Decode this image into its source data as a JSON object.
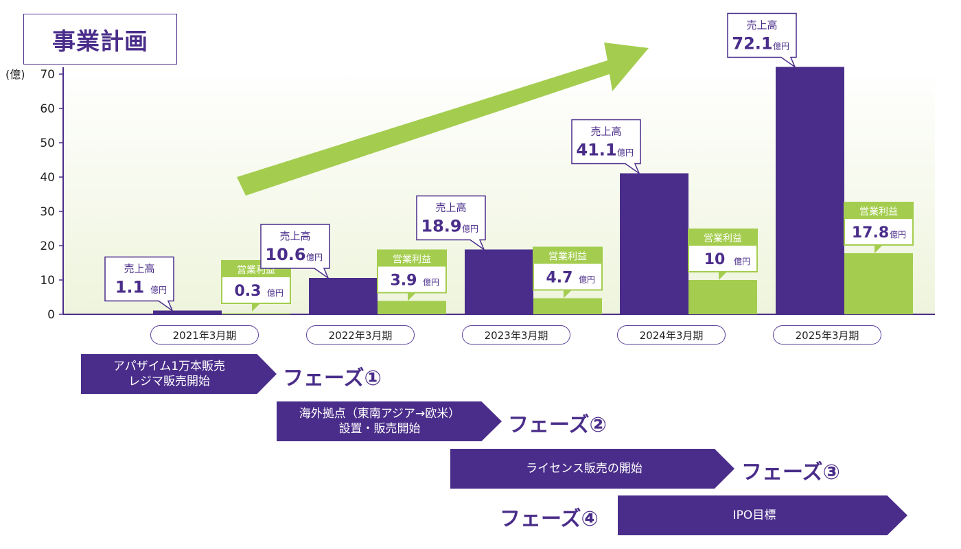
{
  "page_title": "事業計画",
  "chart_data": {
    "type": "bar",
    "unit_label": "(億)",
    "ylim": [
      0,
      70
    ],
    "yticks": [
      "0",
      "10",
      "20",
      "30",
      "40",
      "50",
      "60",
      "70"
    ],
    "categories": [
      "2021年3月期",
      "2022年3月期",
      "2023年3月期",
      "2024年3月期",
      "2025年3月期"
    ],
    "series": [
      {
        "name": "売上高",
        "values": [
          1.1,
          10.6,
          18.9,
          41.1,
          72.1
        ],
        "color": "#4a2d8a",
        "labels": [
          "1.1",
          "10.6",
          "18.9",
          "41.1",
          "72.1"
        ]
      },
      {
        "name": "営業利益",
        "values": [
          0.3,
          3.9,
          4.7,
          10,
          17.8
        ],
        "color": "#a4cd4f",
        "labels": [
          "0.3",
          "3.9",
          "4.7",
          "10",
          "17.8"
        ]
      }
    ],
    "value_unit": "億円",
    "grid": false
  },
  "phases": [
    {
      "text_lines": [
        "アパザイム1万本販売",
        "レジマ販売開始"
      ],
      "label": "フェーズ①"
    },
    {
      "text_lines": [
        "海外拠点（東南アジア→欧米）",
        "設置・販売開始"
      ],
      "label": "フェーズ②"
    },
    {
      "text_lines": [
        "ライセンス販売の開始"
      ],
      "label": "フェーズ③"
    },
    {
      "text_lines": [
        "IPO目標"
      ],
      "label": "フェーズ④"
    }
  ],
  "colors": {
    "purple": "#4a2d8a",
    "green": "#a4cd4f",
    "arrow": "#a4cd4f"
  }
}
